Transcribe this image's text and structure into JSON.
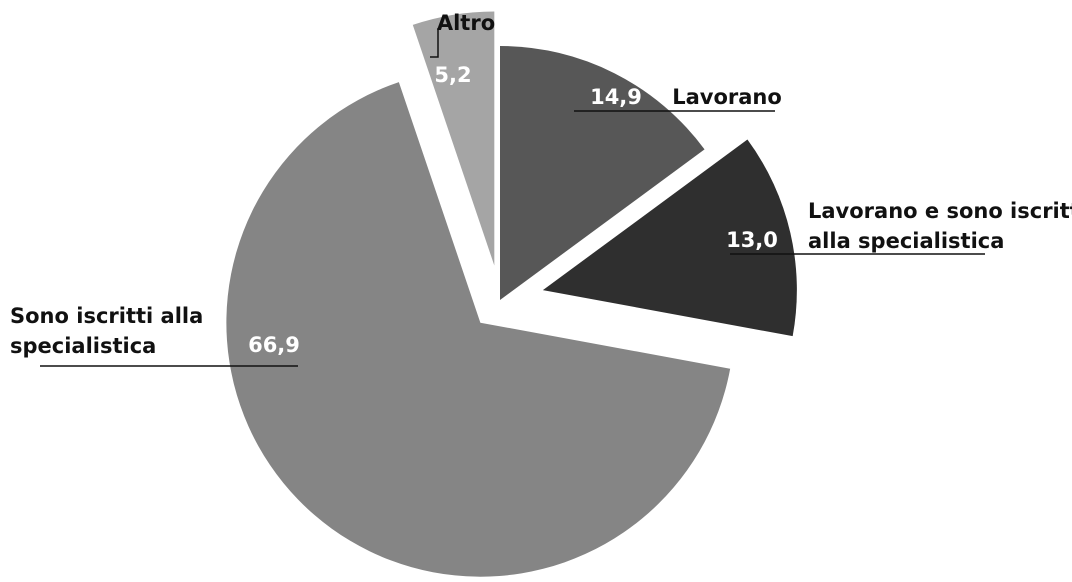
{
  "chart_data": {
    "type": "pie",
    "title": "",
    "slices": [
      {
        "label_lines": [
          "Lavorano"
        ],
        "value": 14.9,
        "display": "14,9",
        "color": "#575757",
        "exploded": false
      },
      {
        "label_lines": [
          "Lavorano e sono iscritti",
          "alla specialistica"
        ],
        "value": 13.0,
        "display": "13,0",
        "color": "#2f2f2f",
        "exploded": true
      },
      {
        "label_lines": [
          "Sono iscritti alla",
          "specialistica"
        ],
        "value": 66.9,
        "display": "66,9",
        "color": "#858585",
        "exploded": true
      },
      {
        "label_lines": [
          "Altro"
        ],
        "value": 5.2,
        "display": "5,2",
        "color": "#a5a5a5",
        "exploded": true
      }
    ],
    "start_angle": "12 o'clock",
    "direction": "clockwise",
    "legend": "none (labels beside slices with leader lines)"
  }
}
